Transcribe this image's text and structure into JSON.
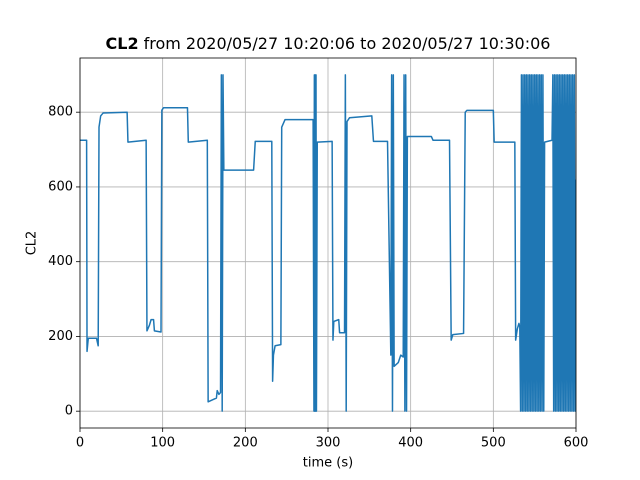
{
  "chart_data": {
    "type": "line",
    "title": {
      "bold": "CL2",
      "text": "from 2020/05/27 10:20:06 to 2020/05/27 10:30:06"
    },
    "x_label": "time (s)",
    "y_label": "CL2",
    "xlim": [
      0,
      600
    ],
    "ylim": [
      -45,
      945
    ],
    "xticks": [
      0,
      100,
      200,
      300,
      400,
      500,
      600
    ],
    "yticks": [
      0,
      200,
      400,
      600,
      800
    ],
    "grid": true,
    "color": "#1f77b4",
    "x": [
      0,
      8,
      8.5,
      10,
      20,
      22,
      23,
      25,
      28,
      57,
      58,
      80,
      81,
      84,
      86,
      89,
      90,
      98,
      99,
      101,
      130,
      131,
      154,
      155,
      165,
      166,
      168,
      170,
      171,
      172,
      173,
      174,
      210,
      212,
      232,
      233,
      234,
      236,
      243,
      244,
      248,
      282,
      283,
      283.5,
      284,
      284.5,
      285,
      285.5,
      286,
      287,
      305,
      306,
      307,
      313,
      314,
      320,
      321,
      322,
      323,
      326,
      353,
      355,
      372,
      376,
      377,
      378,
      379,
      380,
      385,
      388,
      391,
      392,
      393,
      394,
      395,
      396,
      425,
      427,
      447,
      449,
      451,
      464,
      466,
      468,
      500,
      501,
      526,
      527,
      529,
      531,
      532,
      533,
      534,
      535,
      536,
      537,
      538,
      539,
      540,
      541,
      542,
      543,
      544,
      545,
      546,
      547,
      548,
      549,
      550,
      551,
      552,
      553,
      554,
      555,
      556,
      557,
      558,
      559,
      560,
      561,
      562,
      571,
      572,
      573,
      574,
      575,
      576,
      577,
      578,
      579,
      580,
      581,
      582,
      583,
      584,
      585,
      586,
      587,
      588,
      589,
      590,
      591,
      592,
      593,
      594,
      595,
      596,
      597,
      598,
      599,
      600
    ],
    "values": [
      725,
      725,
      160,
      195,
      195,
      175,
      760,
      790,
      798,
      800,
      720,
      725,
      215,
      230,
      245,
      245,
      215,
      212,
      805,
      812,
      812,
      720,
      725,
      25,
      35,
      55,
      45,
      50,
      900,
      0,
      900,
      645,
      645,
      722,
      722,
      80,
      150,
      175,
      178,
      760,
      780,
      780,
      0,
      900,
      0,
      900,
      0,
      900,
      0,
      720,
      722,
      190,
      240,
      245,
      210,
      210,
      900,
      0,
      775,
      785,
      790,
      722,
      722,
      150,
      900,
      0,
      900,
      120,
      130,
      150,
      145,
      900,
      0,
      900,
      0,
      735,
      735,
      725,
      725,
      190,
      205,
      208,
      800,
      805,
      805,
      720,
      720,
      190,
      220,
      235,
      225,
      0,
      900,
      0,
      900,
      0,
      900,
      0,
      900,
      0,
      900,
      0,
      900,
      0,
      900,
      0,
      900,
      0,
      900,
      0,
      900,
      0,
      900,
      0,
      900,
      0,
      900,
      0,
      900,
      0,
      720,
      725,
      900,
      0,
      900,
      0,
      900,
      0,
      900,
      0,
      900,
      0,
      900,
      0,
      900,
      0,
      900,
      0,
      900,
      0,
      900,
      0,
      900,
      0,
      900,
      0,
      900,
      0,
      900,
      0,
      620
    ]
  }
}
